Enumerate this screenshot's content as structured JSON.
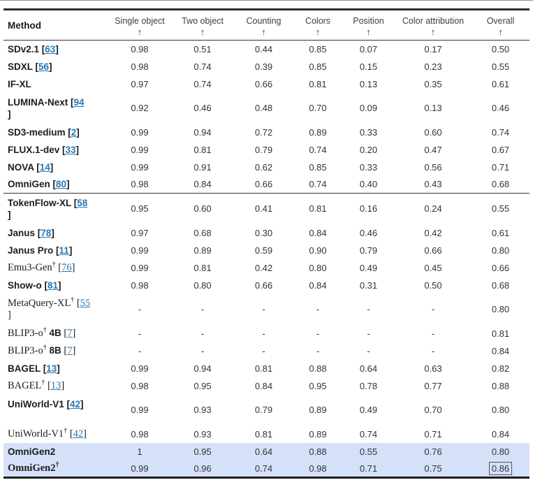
{
  "dagger_symbol": "†",
  "colors": {
    "link": "#2577b6",
    "highlight_row": "#d4e1f8",
    "rule_heavy": "#2b2b2b",
    "rule_light": "#333333"
  },
  "table": {
    "method_header": "Method",
    "sort_arrow": "↑",
    "columns": [
      "Single object",
      "Two object",
      "Counting",
      "Colors",
      "Position",
      "Color attribution",
      "Overall"
    ],
    "rows": [
      {
        "name": "SDv2.1",
        "dagger": false,
        "suffix": "",
        "cite": "63",
        "serif": false,
        "bold": true,
        "wrap": null,
        "rule_after": false,
        "highlight": false,
        "overall": "normal",
        "values": [
          "0.98",
          "0.51",
          "0.44",
          "0.85",
          "0.07",
          "0.17",
          "0.50"
        ]
      },
      {
        "name": "SDXL",
        "dagger": false,
        "suffix": "",
        "cite": "56",
        "serif": false,
        "bold": true,
        "wrap": null,
        "rule_after": false,
        "highlight": false,
        "overall": "normal",
        "values": [
          "0.98",
          "0.74",
          "0.39",
          "0.85",
          "0.15",
          "0.23",
          "0.55"
        ]
      },
      {
        "name": "IF-XL",
        "dagger": false,
        "suffix": "",
        "cite": null,
        "serif": false,
        "bold": true,
        "wrap": null,
        "rule_after": false,
        "highlight": false,
        "overall": "normal",
        "values": [
          "0.97",
          "0.74",
          "0.66",
          "0.81",
          "0.13",
          "0.35",
          "0.61"
        ]
      },
      {
        "name": "LUMINA-Next",
        "dagger": false,
        "suffix": "",
        "cite": "94",
        "serif": false,
        "bold": true,
        "wrap": "bracket",
        "rule_after": false,
        "highlight": false,
        "overall": "normal",
        "values": [
          "0.92",
          "0.46",
          "0.48",
          "0.70",
          "0.09",
          "0.13",
          "0.46"
        ]
      },
      {
        "name": "SD3-medium",
        "dagger": false,
        "suffix": "",
        "cite": "2",
        "serif": false,
        "bold": true,
        "wrap": null,
        "rule_after": false,
        "highlight": false,
        "overall": "normal",
        "values": [
          "0.99",
          "0.94",
          "0.72",
          "0.89",
          "0.33",
          "0.60",
          "0.74"
        ]
      },
      {
        "name": "FLUX.1-dev",
        "dagger": false,
        "suffix": "",
        "cite": "33",
        "serif": false,
        "bold": true,
        "wrap": null,
        "rule_after": false,
        "highlight": false,
        "overall": "normal",
        "values": [
          "0.99",
          "0.81",
          "0.79",
          "0.74",
          "0.20",
          "0.47",
          "0.67"
        ]
      },
      {
        "name": "NOVA",
        "dagger": false,
        "suffix": "",
        "cite": "14",
        "serif": false,
        "bold": true,
        "wrap": null,
        "rule_after": false,
        "highlight": false,
        "overall": "normal",
        "values": [
          "0.99",
          "0.91",
          "0.62",
          "0.85",
          "0.33",
          "0.56",
          "0.71"
        ]
      },
      {
        "name": "OmniGen",
        "dagger": false,
        "suffix": "",
        "cite": "80",
        "serif": false,
        "bold": true,
        "wrap": null,
        "rule_after": true,
        "highlight": false,
        "overall": "normal",
        "values": [
          "0.98",
          "0.84",
          "0.66",
          "0.74",
          "0.40",
          "0.43",
          "0.68"
        ]
      },
      {
        "name": "TokenFlow-XL",
        "dagger": false,
        "suffix": "",
        "cite": "58",
        "serif": false,
        "bold": true,
        "wrap": "bracket",
        "rule_after": false,
        "highlight": false,
        "overall": "normal",
        "values": [
          "0.95",
          "0.60",
          "0.41",
          "0.81",
          "0.16",
          "0.24",
          "0.55"
        ]
      },
      {
        "name": "Janus",
        "dagger": false,
        "suffix": "",
        "cite": "78",
        "serif": false,
        "bold": true,
        "wrap": null,
        "rule_after": false,
        "highlight": false,
        "overall": "normal",
        "values": [
          "0.97",
          "0.68",
          "0.30",
          "0.84",
          "0.46",
          "0.42",
          "0.61"
        ]
      },
      {
        "name": "Janus Pro",
        "dagger": false,
        "suffix": "",
        "cite": "11",
        "serif": false,
        "bold": true,
        "wrap": null,
        "rule_after": false,
        "highlight": false,
        "overall": "normal",
        "values": [
          "0.99",
          "0.89",
          "0.59",
          "0.90",
          "0.79",
          "0.66",
          "0.80"
        ]
      },
      {
        "name": "Emu3-Gen",
        "dagger": true,
        "suffix": "",
        "cite": "76",
        "serif": true,
        "bold": false,
        "wrap": null,
        "rule_after": false,
        "highlight": false,
        "overall": "normal",
        "values": [
          "0.99",
          "0.81",
          "0.42",
          "0.80",
          "0.49",
          "0.45",
          "0.66"
        ]
      },
      {
        "name": "Show-o",
        "dagger": false,
        "suffix": "",
        "cite": "81",
        "serif": false,
        "bold": true,
        "wrap": null,
        "rule_after": false,
        "highlight": false,
        "overall": "normal",
        "values": [
          "0.98",
          "0.80",
          "0.66",
          "0.84",
          "0.31",
          "0.50",
          "0.68"
        ]
      },
      {
        "name": "MetaQuery-XL",
        "dagger": true,
        "suffix": "",
        "cite": "55",
        "serif": true,
        "bold": false,
        "wrap": "bracket",
        "rule_after": false,
        "highlight": false,
        "overall": "normal",
        "values": [
          "-",
          "-",
          "-",
          "-",
          "-",
          "-",
          "0.80"
        ]
      },
      {
        "name": "BLIP3-o",
        "dagger": true,
        "suffix": " 4B",
        "cite": "7",
        "serif": true,
        "bold": false,
        "wrap": null,
        "rule_after": false,
        "highlight": false,
        "overall": "normal",
        "values": [
          "-",
          "-",
          "-",
          "-",
          "-",
          "-",
          "0.81"
        ]
      },
      {
        "name": "BLIP3-o",
        "dagger": true,
        "suffix": " 8B",
        "cite": "7",
        "serif": true,
        "bold": false,
        "wrap": null,
        "rule_after": false,
        "highlight": false,
        "overall": "normal",
        "values": [
          "-",
          "-",
          "-",
          "-",
          "-",
          "-",
          "0.84"
        ]
      },
      {
        "name": "BAGEL",
        "dagger": false,
        "suffix": "",
        "cite": "13",
        "serif": false,
        "bold": true,
        "wrap": null,
        "rule_after": false,
        "highlight": false,
        "overall": "normal",
        "values": [
          "0.99",
          "0.94",
          "0.81",
          "0.88",
          "0.64",
          "0.63",
          "0.82"
        ]
      },
      {
        "name": "BAGEL",
        "dagger": true,
        "suffix": "",
        "cite": "13",
        "serif": true,
        "bold": false,
        "wrap": null,
        "rule_after": false,
        "highlight": false,
        "overall": "bold",
        "values": [
          "0.98",
          "0.95",
          "0.84",
          "0.95",
          "0.78",
          "0.77",
          "0.88"
        ]
      },
      {
        "name": "UniWorld-V1",
        "dagger": false,
        "suffix": "",
        "cite": "42",
        "serif": false,
        "bold": true,
        "wrap": "empty",
        "rule_after": false,
        "highlight": false,
        "overall": "normal",
        "values": [
          "0.99",
          "0.93",
          "0.79",
          "0.89",
          "0.49",
          "0.70",
          "0.80"
        ]
      },
      {
        "name": "UniWorld-V1",
        "dagger": true,
        "suffix": "",
        "cite": "42",
        "serif": true,
        "bold": false,
        "wrap": null,
        "rule_after": false,
        "highlight": false,
        "overall": "normal",
        "values": [
          "0.98",
          "0.93",
          "0.81",
          "0.89",
          "0.74",
          "0.71",
          "0.84"
        ]
      },
      {
        "name": "OmniGen2",
        "dagger": false,
        "suffix": "",
        "cite": null,
        "serif": false,
        "bold": true,
        "wrap": null,
        "rule_after": false,
        "highlight": true,
        "overall": "normal",
        "values": [
          "1",
          "0.95",
          "0.64",
          "0.88",
          "0.55",
          "0.76",
          "0.80"
        ]
      },
      {
        "name": "OmniGen2",
        "dagger": true,
        "suffix": "",
        "cite": null,
        "serif": true,
        "bold": true,
        "wrap": null,
        "rule_after": false,
        "highlight": true,
        "overall": "boxed",
        "values": [
          "0.99",
          "0.96",
          "0.74",
          "0.98",
          "0.71",
          "0.75",
          "0.86"
        ]
      }
    ]
  }
}
